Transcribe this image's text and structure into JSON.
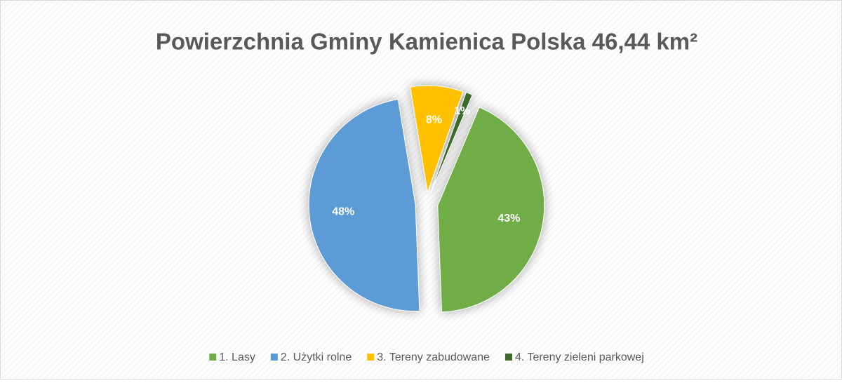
{
  "chart_data": {
    "type": "pie",
    "title": "Powierzchnia Gminy Kamienica Polska 46,44 km²",
    "categories": [
      "1. Lasy",
      "2. Użytki rolne",
      "3. Tereny zabudowane",
      "4. Tereny zieleni parkowej"
    ],
    "values": [
      43,
      48,
      8,
      1
    ],
    "value_labels": [
      "43%",
      "48%",
      "8%",
      "1%"
    ],
    "colors": [
      "#70ad47",
      "#5b9bd5",
      "#ffc000",
      "#3d6b2c"
    ],
    "legend": "bottom"
  }
}
